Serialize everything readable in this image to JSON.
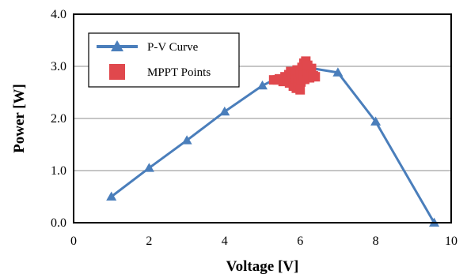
{
  "chart_data": {
    "type": "line",
    "xlabel": "Voltage [V]",
    "ylabel": "Power [W]",
    "xlim": [
      0,
      10
    ],
    "ylim": [
      0,
      4
    ],
    "x_ticks": [
      "0",
      "2",
      "4",
      "6",
      "8",
      "10"
    ],
    "y_ticks": [
      "0.0",
      "1.0",
      "2.0",
      "3.0",
      "4.0"
    ],
    "grid": "horizontal",
    "legend_position": "top-left",
    "series": [
      {
        "name": "P-V Curve",
        "kind": "line",
        "marker": "triangle",
        "color": "#4a7ebb",
        "points": [
          [
            1.0,
            0.5
          ],
          [
            2.0,
            1.05
          ],
          [
            3.0,
            1.58
          ],
          [
            4.0,
            2.13
          ],
          [
            5.0,
            2.63
          ],
          [
            6.0,
            3.0
          ],
          [
            7.0,
            2.88
          ],
          [
            8.0,
            1.94
          ],
          [
            9.55,
            0.0
          ]
        ]
      },
      {
        "name": "MPPT Points",
        "kind": "scatter",
        "marker": "square",
        "color": "#e0484d",
        "points": [
          [
            5.3,
            2.74
          ],
          [
            5.4,
            2.74
          ],
          [
            5.45,
            2.76
          ],
          [
            5.55,
            2.71
          ],
          [
            5.6,
            2.8
          ],
          [
            5.65,
            2.76
          ],
          [
            5.7,
            2.84
          ],
          [
            5.72,
            2.68
          ],
          [
            5.75,
            2.9
          ],
          [
            5.78,
            2.74
          ],
          [
            5.8,
            2.8
          ],
          [
            5.82,
            2.62
          ],
          [
            5.85,
            2.86
          ],
          [
            5.88,
            2.74
          ],
          [
            5.9,
            2.58
          ],
          [
            5.92,
            2.93
          ],
          [
            5.95,
            2.68
          ],
          [
            5.97,
            2.78
          ],
          [
            6.0,
            2.88
          ],
          [
            6.02,
            2.7
          ],
          [
            6.05,
            2.98
          ],
          [
            6.08,
            2.83
          ],
          [
            6.1,
            3.06
          ],
          [
            6.12,
            2.75
          ],
          [
            6.15,
            3.1
          ],
          [
            6.18,
            2.92
          ],
          [
            6.2,
            2.86
          ],
          [
            6.25,
            2.78
          ],
          [
            6.3,
            2.96
          ],
          [
            6.35,
            2.82
          ],
          [
            6.4,
            2.8
          ],
          [
            6.0,
            2.55
          ],
          [
            6.2,
            3.02
          ]
        ]
      }
    ]
  }
}
